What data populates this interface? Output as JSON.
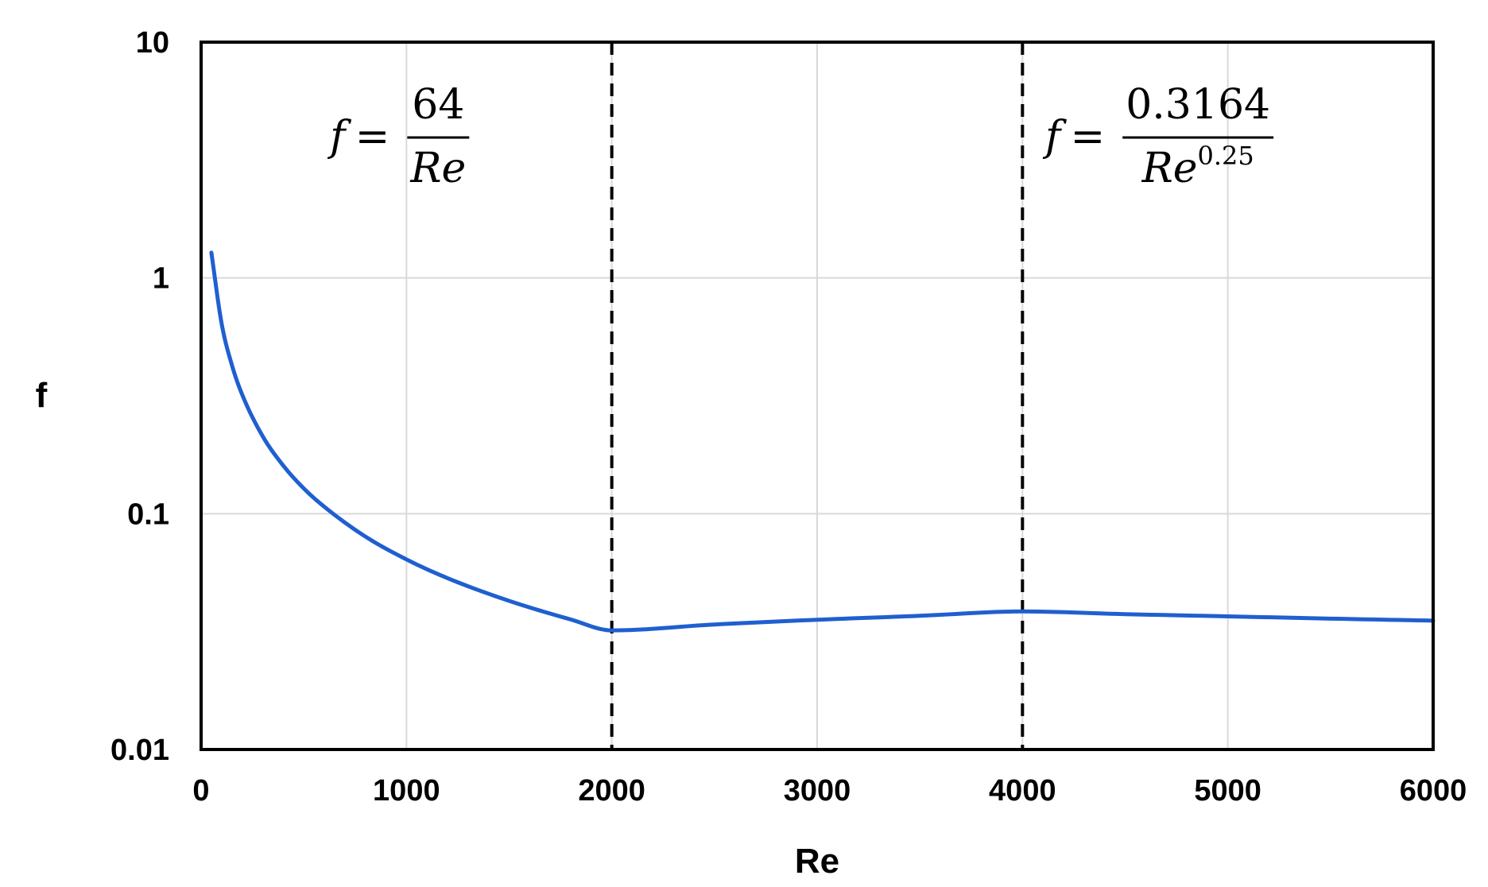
{
  "chart_data": {
    "type": "line",
    "xlabel": "Re",
    "ylabel": "f",
    "xlim": [
      0,
      6000
    ],
    "ylim": [
      0.01,
      10
    ],
    "yscale": "log",
    "grid": true,
    "xticks": [
      0,
      1000,
      2000,
      3000,
      4000,
      5000,
      6000
    ],
    "xtick_labels": [
      "0",
      "1000",
      "2000",
      "3000",
      "4000",
      "5000",
      "6000"
    ],
    "yticks": [
      0.01,
      0.1,
      1,
      10
    ],
    "ytick_labels": [
      "0.01",
      "0.1",
      "1",
      "10"
    ],
    "series": [
      {
        "color": "#1f5fd0",
        "x": [
          50,
          100,
          150,
          200,
          300,
          400,
          500,
          600,
          800,
          1000,
          1200,
          1500,
          1800,
          2000,
          2500,
          3000,
          3500,
          4000,
          4500,
          5000,
          5500,
          6000
        ],
        "y": [
          1.28,
          0.64,
          0.427,
          0.32,
          0.213,
          0.16,
          0.128,
          0.107,
          0.08,
          0.064,
          0.0533,
          0.0427,
          0.0356,
          0.032,
          0.0339,
          0.0355,
          0.0369,
          0.0385,
          0.0375,
          0.0367,
          0.0359,
          0.0352
        ]
      }
    ],
    "vlines": [
      {
        "x": 2000,
        "style": "dashed",
        "color": "#000000"
      },
      {
        "x": 4000,
        "style": "dashed",
        "color": "#000000"
      }
    ],
    "annotations": [
      {
        "id": "laminar",
        "lhs": "f",
        "eq": "=",
        "numerator": "64",
        "denominator": "Re",
        "exponent": "",
        "x": 1000,
        "y": 4
      },
      {
        "id": "turbulent",
        "lhs": "f",
        "eq": "=",
        "numerator": "0.3164",
        "denominator": "Re",
        "exponent": "0.25",
        "x": 4700,
        "y": 4
      }
    ]
  }
}
